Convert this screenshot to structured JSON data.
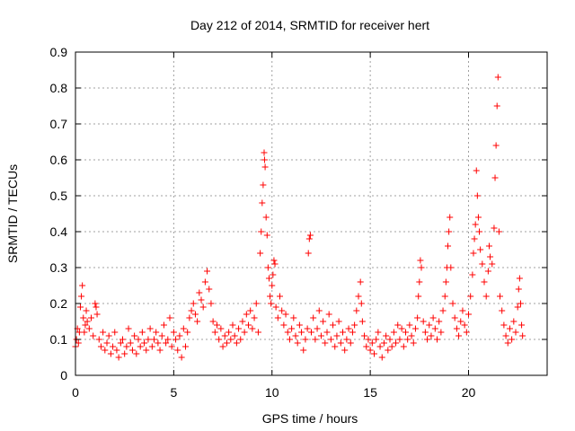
{
  "chart_data": {
    "type": "scatter",
    "title": "Day 212 of 2014, SRMTID for receiver hert",
    "xlabel": "GPS time / hours",
    "ylabel": "SRMTID / TECUs",
    "xlim": [
      0,
      24
    ],
    "ylim": [
      0,
      0.9
    ],
    "xticks": [
      0,
      5,
      10,
      15,
      20
    ],
    "xtick_labels": [
      "0",
      "5",
      "10",
      "15",
      "20"
    ],
    "yticks": [
      0,
      0.1,
      0.2,
      0.3,
      0.4,
      0.5,
      0.6,
      0.7,
      0.8,
      0.9
    ],
    "ytick_labels": [
      "0",
      "0.1",
      "0.2",
      "0.3",
      "0.4",
      "0.5",
      "0.6",
      "0.7",
      "0.8",
      "0.9"
    ],
    "grid": true,
    "marker": "+",
    "color": "#ff0000",
    "series": [
      {
        "name": "SRMTID",
        "points": [
          [
            0.0,
            0.08
          ],
          [
            0.05,
            0.1
          ],
          [
            0.1,
            0.13
          ],
          [
            0.15,
            0.09
          ],
          [
            0.2,
            0.12
          ],
          [
            0.25,
            0.19
          ],
          [
            0.3,
            0.22
          ],
          [
            0.35,
            0.25
          ],
          [
            0.4,
            0.16
          ],
          [
            0.45,
            0.12
          ],
          [
            0.5,
            0.14
          ],
          [
            0.55,
            0.18
          ],
          [
            0.6,
            0.15
          ],
          [
            0.7,
            0.13
          ],
          [
            0.8,
            0.16
          ],
          [
            0.9,
            0.11
          ],
          [
            1.0,
            0.2
          ],
          [
            1.05,
            0.19
          ],
          [
            1.1,
            0.17
          ],
          [
            1.2,
            0.1
          ],
          [
            1.3,
            0.08
          ],
          [
            1.4,
            0.12
          ],
          [
            1.5,
            0.07
          ],
          [
            1.6,
            0.09
          ],
          [
            1.7,
            0.11
          ],
          [
            1.8,
            0.06
          ],
          [
            1.9,
            0.08
          ],
          [
            2.0,
            0.12
          ],
          [
            2.1,
            0.07
          ],
          [
            2.2,
            0.05
          ],
          [
            2.3,
            0.09
          ],
          [
            2.4,
            0.1
          ],
          [
            2.5,
            0.06
          ],
          [
            2.6,
            0.08
          ],
          [
            2.7,
            0.13
          ],
          [
            2.8,
            0.09
          ],
          [
            2.9,
            0.07
          ],
          [
            3.0,
            0.11
          ],
          [
            3.1,
            0.06
          ],
          [
            3.2,
            0.1
          ],
          [
            3.3,
            0.08
          ],
          [
            3.4,
            0.12
          ],
          [
            3.5,
            0.09
          ],
          [
            3.6,
            0.07
          ],
          [
            3.7,
            0.1
          ],
          [
            3.8,
            0.13
          ],
          [
            3.9,
            0.08
          ],
          [
            4.0,
            0.1
          ],
          [
            4.1,
            0.12
          ],
          [
            4.2,
            0.09
          ],
          [
            4.3,
            0.07
          ],
          [
            4.4,
            0.11
          ],
          [
            4.5,
            0.14
          ],
          [
            4.6,
            0.09
          ],
          [
            4.7,
            0.1
          ],
          [
            4.8,
            0.16
          ],
          [
            4.9,
            0.08
          ],
          [
            5.0,
            0.12
          ],
          [
            5.1,
            0.1
          ],
          [
            5.2,
            0.07
          ],
          [
            5.3,
            0.11
          ],
          [
            5.4,
            0.05
          ],
          [
            5.5,
            0.13
          ],
          [
            5.6,
            0.08
          ],
          [
            5.7,
            0.12
          ],
          [
            5.8,
            0.16
          ],
          [
            5.9,
            0.18
          ],
          [
            6.0,
            0.2
          ],
          [
            6.1,
            0.17
          ],
          [
            6.2,
            0.15
          ],
          [
            6.3,
            0.23
          ],
          [
            6.4,
            0.21
          ],
          [
            6.5,
            0.19
          ],
          [
            6.6,
            0.26
          ],
          [
            6.7,
            0.29
          ],
          [
            6.8,
            0.24
          ],
          [
            6.9,
            0.2
          ],
          [
            7.0,
            0.15
          ],
          [
            7.1,
            0.12
          ],
          [
            7.2,
            0.14
          ],
          [
            7.3,
            0.1
          ],
          [
            7.4,
            0.13
          ],
          [
            7.5,
            0.08
          ],
          [
            7.6,
            0.11
          ],
          [
            7.7,
            0.09
          ],
          [
            7.8,
            0.12
          ],
          [
            7.9,
            0.1
          ],
          [
            8.0,
            0.14
          ],
          [
            8.1,
            0.11
          ],
          [
            8.2,
            0.09
          ],
          [
            8.3,
            0.13
          ],
          [
            8.4,
            0.1
          ],
          [
            8.5,
            0.15
          ],
          [
            8.6,
            0.12
          ],
          [
            8.7,
            0.17
          ],
          [
            8.8,
            0.14
          ],
          [
            8.9,
            0.18
          ],
          [
            9.0,
            0.13
          ],
          [
            9.1,
            0.16
          ],
          [
            9.2,
            0.2
          ],
          [
            9.3,
            0.12
          ],
          [
            9.4,
            0.34
          ],
          [
            9.45,
            0.4
          ],
          [
            9.5,
            0.48
          ],
          [
            9.55,
            0.53
          ],
          [
            9.6,
            0.62
          ],
          [
            9.62,
            0.6
          ],
          [
            9.65,
            0.58
          ],
          [
            9.7,
            0.44
          ],
          [
            9.75,
            0.39
          ],
          [
            9.8,
            0.3
          ],
          [
            9.85,
            0.27
          ],
          [
            9.9,
            0.22
          ],
          [
            9.95,
            0.2
          ],
          [
            10.0,
            0.25
          ],
          [
            10.05,
            0.28
          ],
          [
            10.1,
            0.32
          ],
          [
            10.15,
            0.31
          ],
          [
            10.2,
            0.19
          ],
          [
            10.3,
            0.16
          ],
          [
            10.4,
            0.22
          ],
          [
            10.5,
            0.18
          ],
          [
            10.6,
            0.14
          ],
          [
            10.7,
            0.17
          ],
          [
            10.8,
            0.12
          ],
          [
            10.9,
            0.1
          ],
          [
            11.0,
            0.13
          ],
          [
            11.1,
            0.16
          ],
          [
            11.2,
            0.11
          ],
          [
            11.3,
            0.09
          ],
          [
            11.4,
            0.14
          ],
          [
            11.5,
            0.12
          ],
          [
            11.6,
            0.07
          ],
          [
            11.7,
            0.1
          ],
          [
            11.8,
            0.13
          ],
          [
            11.85,
            0.34
          ],
          [
            11.9,
            0.38
          ],
          [
            11.95,
            0.39
          ],
          [
            12.0,
            0.12
          ],
          [
            12.1,
            0.16
          ],
          [
            12.2,
            0.1
          ],
          [
            12.3,
            0.13
          ],
          [
            12.4,
            0.18
          ],
          [
            12.5,
            0.11
          ],
          [
            12.6,
            0.15
          ],
          [
            12.7,
            0.09
          ],
          [
            12.8,
            0.12
          ],
          [
            12.9,
            0.17
          ],
          [
            13.0,
            0.1
          ],
          [
            13.1,
            0.14
          ],
          [
            13.2,
            0.08
          ],
          [
            13.3,
            0.11
          ],
          [
            13.4,
            0.15
          ],
          [
            13.5,
            0.09
          ],
          [
            13.6,
            0.12
          ],
          [
            13.7,
            0.07
          ],
          [
            13.8,
            0.1
          ],
          [
            13.9,
            0.13
          ],
          [
            14.0,
            0.09
          ],
          [
            14.1,
            0.12
          ],
          [
            14.2,
            0.14
          ],
          [
            14.3,
            0.18
          ],
          [
            14.4,
            0.22
          ],
          [
            14.5,
            0.26
          ],
          [
            14.55,
            0.2
          ],
          [
            14.6,
            0.15
          ],
          [
            14.7,
            0.11
          ],
          [
            14.8,
            0.08
          ],
          [
            14.9,
            0.1
          ],
          [
            15.0,
            0.07
          ],
          [
            15.1,
            0.09
          ],
          [
            15.2,
            0.06
          ],
          [
            15.3,
            0.1
          ],
          [
            15.4,
            0.12
          ],
          [
            15.5,
            0.08
          ],
          [
            15.6,
            0.05
          ],
          [
            15.7,
            0.09
          ],
          [
            15.8,
            0.11
          ],
          [
            15.9,
            0.07
          ],
          [
            16.0,
            0.1
          ],
          [
            16.1,
            0.08
          ],
          [
            16.2,
            0.12
          ],
          [
            16.3,
            0.09
          ],
          [
            16.4,
            0.14
          ],
          [
            16.5,
            0.1
          ],
          [
            16.6,
            0.13
          ],
          [
            16.7,
            0.08
          ],
          [
            16.8,
            0.12
          ],
          [
            16.9,
            0.1
          ],
          [
            17.0,
            0.14
          ],
          [
            17.1,
            0.11
          ],
          [
            17.2,
            0.09
          ],
          [
            17.3,
            0.13
          ],
          [
            17.4,
            0.16
          ],
          [
            17.45,
            0.22
          ],
          [
            17.5,
            0.26
          ],
          [
            17.55,
            0.32
          ],
          [
            17.6,
            0.3
          ],
          [
            17.7,
            0.15
          ],
          [
            17.8,
            0.12
          ],
          [
            17.9,
            0.1
          ],
          [
            18.0,
            0.14
          ],
          [
            18.1,
            0.11
          ],
          [
            18.2,
            0.16
          ],
          [
            18.3,
            0.13
          ],
          [
            18.4,
            0.1
          ],
          [
            18.5,
            0.15
          ],
          [
            18.6,
            0.12
          ],
          [
            18.7,
            0.18
          ],
          [
            18.8,
            0.22
          ],
          [
            18.85,
            0.26
          ],
          [
            18.9,
            0.3
          ],
          [
            18.95,
            0.36
          ],
          [
            19.0,
            0.4
          ],
          [
            19.05,
            0.44
          ],
          [
            19.1,
            0.3
          ],
          [
            19.2,
            0.2
          ],
          [
            19.3,
            0.16
          ],
          [
            19.4,
            0.13
          ],
          [
            19.5,
            0.11
          ],
          [
            19.6,
            0.15
          ],
          [
            19.7,
            0.18
          ],
          [
            19.8,
            0.14
          ],
          [
            19.9,
            0.12
          ],
          [
            20.0,
            0.17
          ],
          [
            20.1,
            0.22
          ],
          [
            20.2,
            0.28
          ],
          [
            20.25,
            0.34
          ],
          [
            20.3,
            0.38
          ],
          [
            20.35,
            0.42
          ],
          [
            20.4,
            0.57
          ],
          [
            20.45,
            0.5
          ],
          [
            20.5,
            0.44
          ],
          [
            20.55,
            0.4
          ],
          [
            20.6,
            0.35
          ],
          [
            20.7,
            0.31
          ],
          [
            20.8,
            0.26
          ],
          [
            20.9,
            0.22
          ],
          [
            21.0,
            0.29
          ],
          [
            21.05,
            0.36
          ],
          [
            21.1,
            0.33
          ],
          [
            21.2,
            0.31
          ],
          [
            21.3,
            0.41
          ],
          [
            21.35,
            0.55
          ],
          [
            21.4,
            0.64
          ],
          [
            21.45,
            0.75
          ],
          [
            21.5,
            0.83
          ],
          [
            21.55,
            0.4
          ],
          [
            21.6,
            0.22
          ],
          [
            21.7,
            0.18
          ],
          [
            21.8,
            0.14
          ],
          [
            21.9,
            0.11
          ],
          [
            22.0,
            0.09
          ],
          [
            22.1,
            0.13
          ],
          [
            22.2,
            0.1
          ],
          [
            22.3,
            0.15
          ],
          [
            22.4,
            0.12
          ],
          [
            22.5,
            0.19
          ],
          [
            22.55,
            0.24
          ],
          [
            22.6,
            0.27
          ],
          [
            22.65,
            0.2
          ],
          [
            22.7,
            0.14
          ],
          [
            22.75,
            0.11
          ]
        ]
      }
    ]
  }
}
